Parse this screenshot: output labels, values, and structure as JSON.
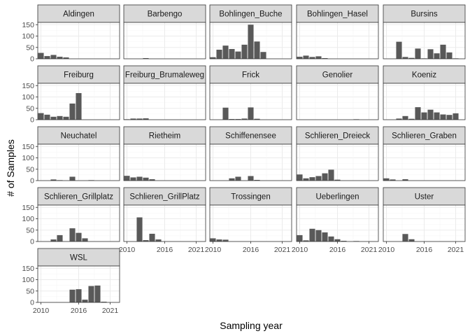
{
  "chart_data": {
    "type": "bar",
    "xlabel": "Sampling year",
    "ylabel": "# of Samples",
    "xlim": [
      2009.5,
      2022.5
    ],
    "ylim": [
      0,
      160
    ],
    "xticks": [
      "2010",
      "2016",
      "2021"
    ],
    "yticks": [
      "0",
      "50",
      "100",
      "150"
    ],
    "grid": true,
    "bar_color": "#595959",
    "strip_color": "#d9d9d9",
    "panels": [
      {
        "name": "Aldingen",
        "x": [
          2010,
          2011,
          2012,
          2013,
          2014
        ],
        "values": [
          26,
          12,
          17,
          9,
          6
        ]
      },
      {
        "name": "Barbengo",
        "x": [
          2013
        ],
        "values": [
          3
        ]
      },
      {
        "name": "Bohlingen_Buche",
        "x": [
          2010,
          2011,
          2012,
          2013,
          2014,
          2015,
          2016,
          2017,
          2018
        ],
        "values": [
          7,
          40,
          58,
          43,
          32,
          62,
          150,
          76,
          30
        ]
      },
      {
        "name": "Bohlingen_Hasel",
        "x": [
          2010,
          2011,
          2012,
          2013,
          2014
        ],
        "values": [
          9,
          14,
          8,
          11,
          3
        ]
      },
      {
        "name": "Bursins",
        "x": [
          2012,
          2013,
          2014,
          2015,
          2016,
          2017,
          2018,
          2019,
          2020,
          2021
        ],
        "values": [
          75,
          8,
          4,
          45,
          2,
          42,
          24,
          62,
          28,
          2
        ]
      },
      {
        "name": "Freiburg",
        "x": [
          2010,
          2011,
          2012,
          2013,
          2014,
          2015,
          2016
        ],
        "values": [
          29,
          22,
          13,
          16,
          13,
          71,
          117
        ]
      },
      {
        "name": "Freiburg_Brumaleweg",
        "x": [
          2010,
          2011,
          2012,
          2013
        ],
        "values": [
          2,
          5,
          5,
          6
        ]
      },
      {
        "name": "Frick",
        "x": [
          2012,
          2013,
          2014,
          2015,
          2016,
          2017
        ],
        "values": [
          53,
          3,
          3,
          5,
          54,
          4
        ]
      },
      {
        "name": "Genolier",
        "x": [
          2019
        ],
        "values": [
          2
        ]
      },
      {
        "name": "Koeniz",
        "x": [
          2012,
          2013,
          2014,
          2015,
          2016,
          2017,
          2018,
          2019,
          2020,
          2021
        ],
        "values": [
          5,
          16,
          4,
          55,
          32,
          44,
          32,
          23,
          21,
          28
        ]
      },
      {
        "name": "Neuchatel",
        "x": [
          2012,
          2013,
          2015,
          2018
        ],
        "values": [
          5,
          2,
          17,
          2
        ]
      },
      {
        "name": "Rietheim",
        "x": [
          2010,
          2011,
          2012,
          2013,
          2014
        ],
        "values": [
          21,
          14,
          17,
          13,
          6
        ]
      },
      {
        "name": "Schiffenensee",
        "x": [
          2013,
          2014,
          2016,
          2017
        ],
        "values": [
          10,
          17,
          20,
          3
        ]
      },
      {
        "name": "Schlieren_Dreieck",
        "x": [
          2010,
          2011,
          2012,
          2013,
          2014,
          2015,
          2016
        ],
        "values": [
          27,
          10,
          15,
          20,
          32,
          48,
          4
        ]
      },
      {
        "name": "Schlieren_Graben",
        "x": [
          2010,
          2011,
          2013
        ],
        "values": [
          10,
          5,
          6
        ]
      },
      {
        "name": "Schlieren_Grillplatz",
        "x": [
          2012,
          2013,
          2015,
          2016,
          2017
        ],
        "values": [
          9,
          28,
          58,
          38,
          14
        ]
      },
      {
        "name": "Schlieren_GrillPlatz",
        "x": [
          2012,
          2013,
          2014,
          2015
        ],
        "values": [
          106,
          6,
          34,
          9
        ]
      },
      {
        "name": "Trossingen",
        "x": [
          2010,
          2011,
          2012
        ],
        "values": [
          14,
          9,
          8
        ]
      },
      {
        "name": "Ueberlingen",
        "x": [
          2010,
          2011,
          2012,
          2013,
          2014,
          2015,
          2016,
          2017,
          2019
        ],
        "values": [
          28,
          5,
          56,
          50,
          40,
          22,
          10,
          3,
          2
        ]
      },
      {
        "name": "Uster",
        "x": [
          2013,
          2014
        ],
        "values": [
          33,
          10
        ]
      },
      {
        "name": "WSL",
        "x": [
          2015,
          2016,
          2017,
          2018,
          2019,
          2020
        ],
        "values": [
          56,
          58,
          12,
          72,
          74,
          3
        ]
      }
    ]
  }
}
